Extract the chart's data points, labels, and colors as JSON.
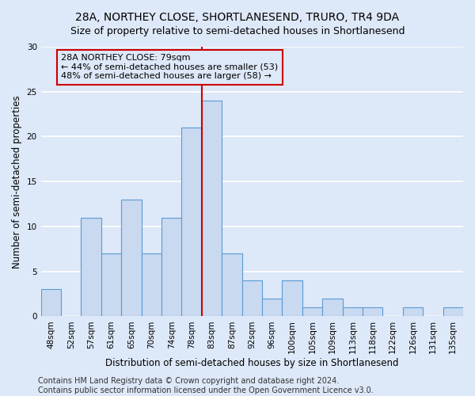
{
  "title": "28A, NORTHEY CLOSE, SHORTLANESEND, TRURO, TR4 9DA",
  "subtitle": "Size of property relative to semi-detached houses in Shortlanesend",
  "xlabel": "Distribution of semi-detached houses by size in Shortlanesend",
  "ylabel": "Number of semi-detached properties",
  "bar_labels": [
    "48sqm",
    "52sqm",
    "57sqm",
    "61sqm",
    "65sqm",
    "70sqm",
    "74sqm",
    "78sqm",
    "83sqm",
    "87sqm",
    "92sqm",
    "96sqm",
    "100sqm",
    "105sqm",
    "109sqm",
    "113sqm",
    "118sqm",
    "122sqm",
    "126sqm",
    "131sqm",
    "135sqm"
  ],
  "bar_values": [
    3,
    0,
    11,
    7,
    13,
    7,
    11,
    21,
    24,
    7,
    4,
    2,
    4,
    1,
    2,
    1,
    1,
    0,
    1,
    0,
    1
  ],
  "bar_color": "#c9d9f0",
  "bar_edge_color": "#5b9bd5",
  "annotation_title": "28A NORTHEY CLOSE: 79sqm",
  "annotation_line1": "← 44% of semi-detached houses are smaller (53)",
  "annotation_line2": "48% of semi-detached houses are larger (58) →",
  "vline_x": 7.5,
  "vline_color": "#cc0000",
  "annotation_box_color": "#cc0000",
  "ylim": [
    0,
    30
  ],
  "yticks": [
    0,
    5,
    10,
    15,
    20,
    25,
    30
  ],
  "footer1": "Contains HM Land Registry data © Crown copyright and database right 2024.",
  "footer2": "Contains public sector information licensed under the Open Government Licence v3.0.",
  "bg_color": "#dde8f8",
  "grid_color": "#ffffff",
  "title_fontsize": 10,
  "subtitle_fontsize": 9,
  "axis_label_fontsize": 8.5,
  "tick_fontsize": 7.5,
  "footer_fontsize": 7.0,
  "annotation_fontsize": 8.0
}
